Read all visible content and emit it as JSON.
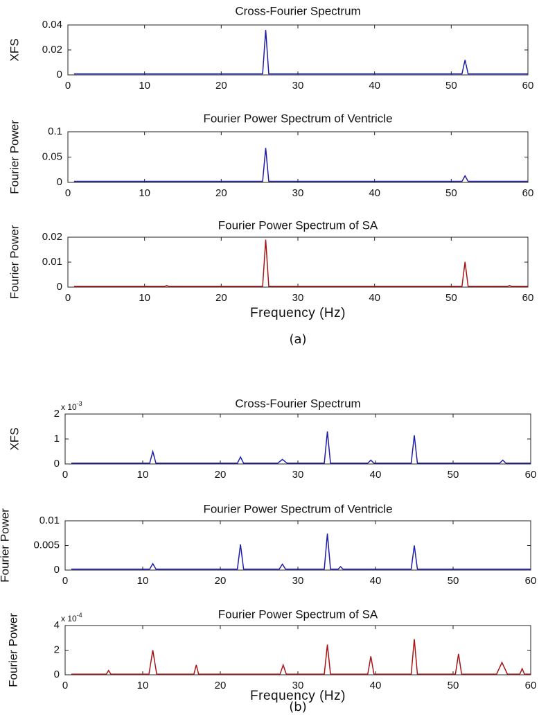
{
  "chart_data": [
    {
      "type": "line",
      "title": "Cross-Fourier Spectrum",
      "ylabel": "XFS",
      "color": "#1c1ca8",
      "xlim": [
        0,
        60
      ],
      "xticks": [
        0,
        10,
        20,
        30,
        40,
        50,
        60
      ],
      "ylim": [
        0,
        0.04
      ],
      "yticks": [
        0,
        0.02,
        0.04
      ],
      "x": [
        0.8,
        25.4,
        25.8,
        26.2,
        51.4,
        51.8,
        52.2,
        60
      ],
      "values": [
        0.0008,
        0.0008,
        0.036,
        0.0008,
        0.0008,
        0.012,
        0.0008,
        0.0008
      ]
    },
    {
      "type": "line",
      "title": "Fourier Power Spectrum of Ventricle",
      "ylabel": "Fourier Power",
      "color": "#1c1ca8",
      "xlim": [
        0,
        60
      ],
      "xticks": [
        0,
        10,
        20,
        30,
        40,
        50,
        60
      ],
      "ylim": [
        0,
        0.1
      ],
      "yticks": [
        0,
        0.05,
        0.1
      ],
      "x": [
        0.8,
        25.4,
        25.8,
        26.2,
        51.4,
        51.8,
        52.2,
        60
      ],
      "values": [
        0.002,
        0.002,
        0.068,
        0.002,
        0.002,
        0.013,
        0.002,
        0.002
      ]
    },
    {
      "type": "line",
      "title": "Fourier Power Spectrum of SA",
      "ylabel": "Fourier Power",
      "xlabel": "Frequency (Hz)",
      "caption": "(a)",
      "color": "#a81414",
      "xlim": [
        0,
        60
      ],
      "xticks": [
        0,
        10,
        20,
        30,
        40,
        50,
        60
      ],
      "ylim": [
        0,
        0.02
      ],
      "yticks": [
        0,
        0.01,
        0.02
      ],
      "x": [
        0.8,
        12.6,
        12.9,
        13.2,
        25.4,
        25.8,
        26.2,
        51.4,
        51.8,
        52.2,
        57.3,
        57.6,
        57.9,
        60
      ],
      "values": [
        0.0003,
        0.0003,
        0.0006,
        0.0003,
        0.0003,
        0.019,
        0.0003,
        0.0003,
        0.0101,
        0.0003,
        0.0003,
        0.0006,
        0.0003,
        0.0003
      ]
    },
    {
      "type": "line",
      "title": "Cross-Fourier Spectrum",
      "ylabel": "XFS",
      "color": "#1c1ca8",
      "y_multiplier": {
        "base": "x 10",
        "exponent": "-3"
      },
      "xlim": [
        0,
        60
      ],
      "xticks": [
        0,
        10,
        20,
        30,
        40,
        50,
        60
      ],
      "ylim": [
        0,
        2
      ],
      "yticks": [
        0,
        1,
        2
      ],
      "x": [
        0.8,
        10.9,
        11.3,
        11.7,
        22.2,
        22.6,
        23.0,
        27.4,
        28.0,
        28.6,
        33.4,
        33.8,
        34.2,
        39.0,
        39.4,
        39.8,
        44.6,
        45.0,
        45.4,
        56.0,
        56.4,
        56.8,
        60
      ],
      "values": [
        0.03,
        0.03,
        0.5,
        0.03,
        0.03,
        0.28,
        0.03,
        0.03,
        0.18,
        0.03,
        0.03,
        1.3,
        0.03,
        0.03,
        0.15,
        0.03,
        0.03,
        1.15,
        0.03,
        0.03,
        0.15,
        0.03,
        0.03
      ]
    },
    {
      "type": "line",
      "title": "Fourier Power Spectrum of Ventricle",
      "ylabel": "Fourier Power",
      "color": "#1c1ca8",
      "xlim": [
        0,
        60
      ],
      "xticks": [
        0,
        10,
        20,
        30,
        40,
        50,
        60
      ],
      "ylim": [
        0,
        0.01
      ],
      "yticks": [
        0,
        0.005,
        0.01
      ],
      "x": [
        0.8,
        10.9,
        11.3,
        11.7,
        22.2,
        22.6,
        23.0,
        27.6,
        28.0,
        28.4,
        33.4,
        33.8,
        34.2,
        35.2,
        35.5,
        35.8,
        44.6,
        45.0,
        45.4,
        60
      ],
      "values": [
        0.0002,
        0.0002,
        0.0013,
        0.0002,
        0.0002,
        0.0052,
        0.0002,
        0.0002,
        0.0012,
        0.0002,
        0.0002,
        0.0074,
        0.0002,
        0.0002,
        0.0007,
        0.0002,
        0.0002,
        0.005,
        0.0002,
        0.0002
      ]
    },
    {
      "type": "line",
      "title": "Fourier Power Spectrum of SA",
      "ylabel": "Fourier Power",
      "xlabel": "Frequency (Hz)",
      "caption": "(b)",
      "color": "#a81414",
      "y_multiplier": {
        "base": "x 10",
        "exponent": "-4"
      },
      "xlim": [
        0,
        60
      ],
      "xticks": [
        0,
        10,
        20,
        30,
        40,
        50,
        60
      ],
      "ylim": [
        0,
        4
      ],
      "yticks": [
        0,
        2,
        4
      ],
      "x": [
        0.8,
        5.3,
        5.6,
        5.9,
        10.8,
        11.3,
        11.8,
        16.6,
        16.9,
        17.2,
        27.7,
        28.1,
        28.5,
        33.4,
        33.8,
        34.2,
        39.0,
        39.4,
        39.8,
        44.6,
        45.0,
        45.4,
        50.3,
        50.7,
        51.1,
        55.6,
        56.3,
        57.0,
        58.6,
        58.9,
        59.2,
        60
      ],
      "values": [
        0.05,
        0.05,
        0.35,
        0.05,
        0.05,
        2.0,
        0.05,
        0.05,
        0.8,
        0.05,
        0.05,
        0.8,
        0.05,
        0.05,
        2.45,
        0.05,
        0.05,
        1.5,
        0.05,
        0.05,
        2.9,
        0.05,
        0.05,
        1.7,
        0.05,
        0.05,
        1.0,
        0.05,
        0.05,
        0.5,
        0.05,
        0.05
      ]
    }
  ]
}
